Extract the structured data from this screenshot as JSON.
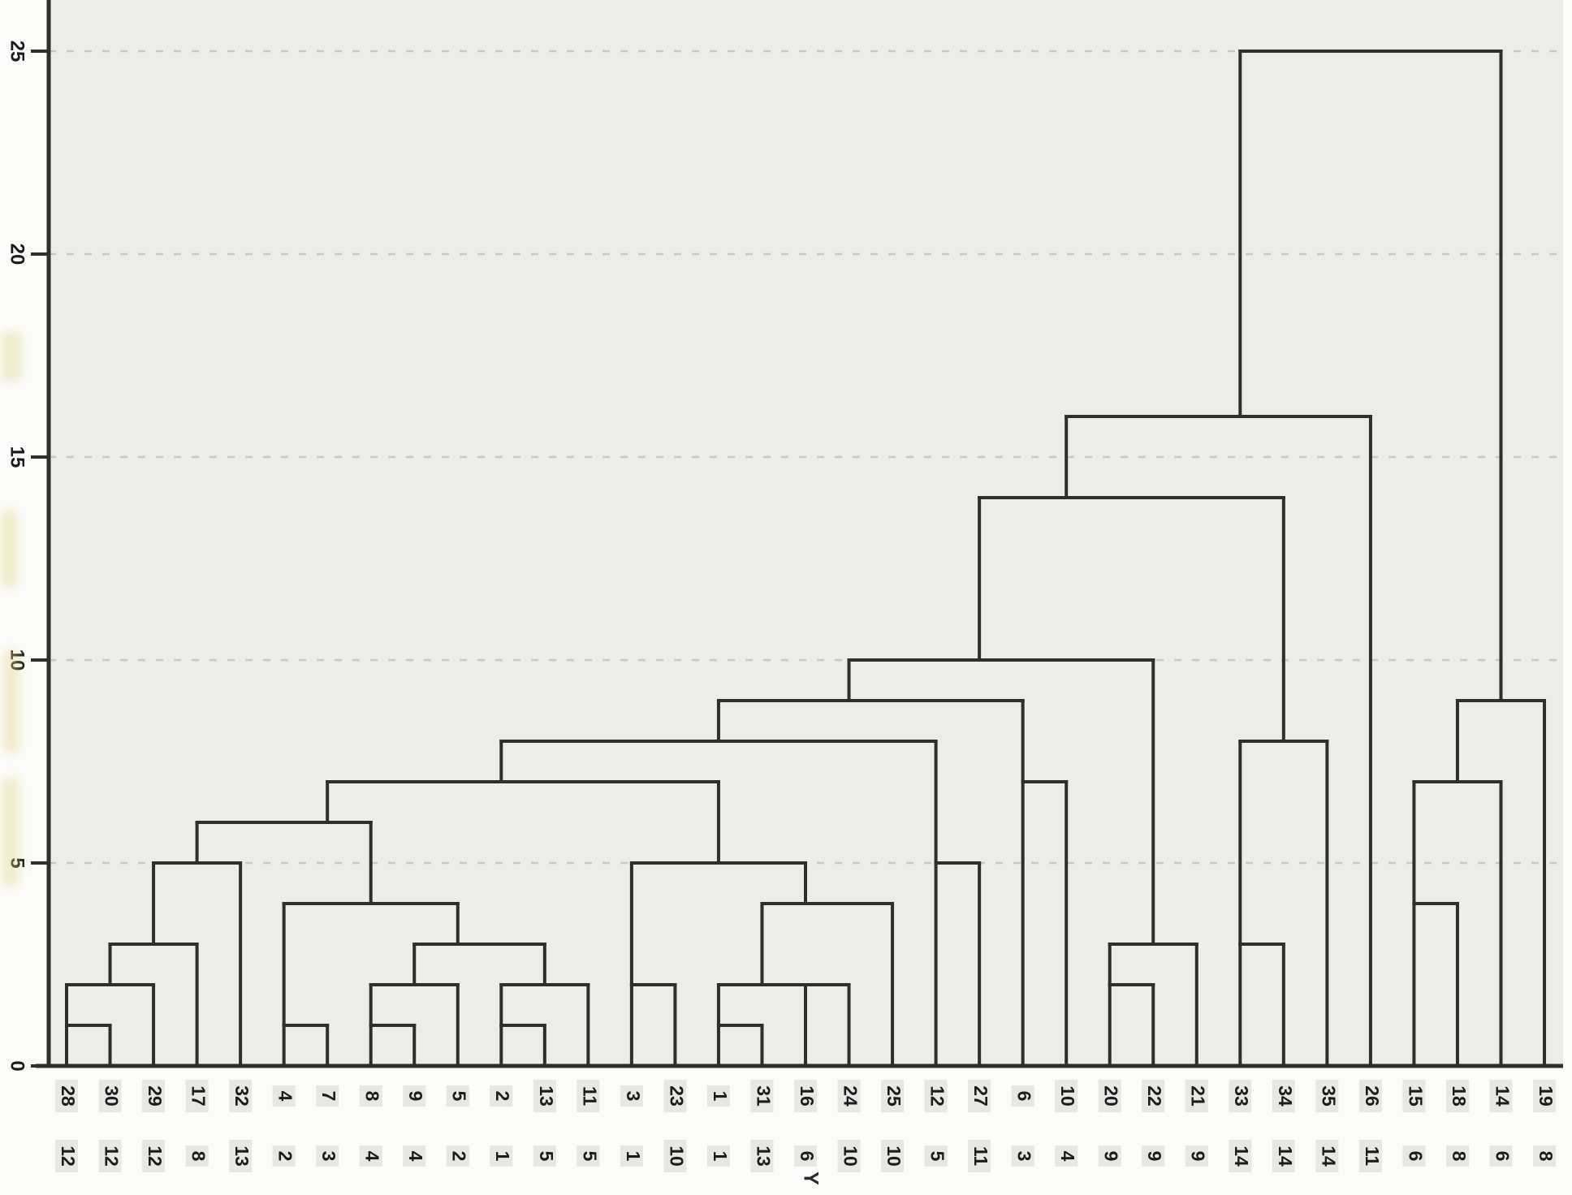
{
  "chart_data": {
    "type": "dendrogram",
    "orientation": "leaves-bottom",
    "xlabel": "Y",
    "ylabel": "",
    "ylim": [
      0,
      26.3
    ],
    "grid": true,
    "y_axis": {
      "ticks": [
        0,
        5,
        10,
        15,
        20,
        25
      ]
    },
    "leaves": [
      {
        "id": "28",
        "group": "12"
      },
      {
        "id": "30",
        "group": "12"
      },
      {
        "id": "29",
        "group": "12"
      },
      {
        "id": "17",
        "group": "8"
      },
      {
        "id": "32",
        "group": "13"
      },
      {
        "id": "4",
        "group": "2"
      },
      {
        "id": "7",
        "group": "3"
      },
      {
        "id": "8",
        "group": "4"
      },
      {
        "id": "9",
        "group": "4"
      },
      {
        "id": "5",
        "group": "2"
      },
      {
        "id": "2",
        "group": "1"
      },
      {
        "id": "13",
        "group": "5"
      },
      {
        "id": "11",
        "group": "5"
      },
      {
        "id": "3",
        "group": "1"
      },
      {
        "id": "23",
        "group": "10"
      },
      {
        "id": "1",
        "group": "1"
      },
      {
        "id": "31",
        "group": "13"
      },
      {
        "id": "16",
        "group": "6"
      },
      {
        "id": "24",
        "group": "10"
      },
      {
        "id": "25",
        "group": "10"
      },
      {
        "id": "12",
        "group": "5"
      },
      {
        "id": "27",
        "group": "11"
      },
      {
        "id": "6",
        "group": "3"
      },
      {
        "id": "10",
        "group": "4"
      },
      {
        "id": "20",
        "group": "9"
      },
      {
        "id": "22",
        "group": "9"
      },
      {
        "id": "21",
        "group": "9"
      },
      {
        "id": "33",
        "group": "14"
      },
      {
        "id": "34",
        "group": "14"
      },
      {
        "id": "35",
        "group": "14"
      },
      {
        "id": "26",
        "group": "11"
      },
      {
        "id": "15",
        "group": "6"
      },
      {
        "id": "18",
        "group": "8"
      },
      {
        "id": "14",
        "group": "6"
      },
      {
        "id": "19",
        "group": "8"
      }
    ],
    "tree": {
      "h": 25,
      "s": null,
      "c": [
        {
          "h": 16,
          "s": "33",
          "c": [
            {
              "h": 14,
              "s": "10",
              "c": [
                {
                  "h": 10,
                  "s": "27",
                  "c": [
                    {
                      "h": 9,
                      "s": "24",
                      "c": [
                        {
                          "h": 8,
                          "s": "1",
                          "c": [
                            {
                              "h": 7,
                              "s": "2",
                              "c": [
                                {
                                  "h": 6,
                                  "s": "7",
                                  "c": [
                                    {
                                      "h": 5,
                                      "s": "17",
                                      "c": [
                                        {
                                          "h": 3,
                                          "s": "29",
                                          "c": [
                                            {
                                              "h": 2,
                                              "s": "30",
                                              "c": [
                                                {
                                                  "h": 1,
                                                  "s": "28",
                                                  "c": [
                                                    "28",
                                                    "30"
                                                  ]
                                                },
                                                "29"
                                              ]
                                            },
                                            "17"
                                          ]
                                        },
                                        "32"
                                      ]
                                    },
                                    {
                                      "h": 4,
                                      "s": "8",
                                      "c": [
                                        {
                                          "h": 1,
                                          "s": "4",
                                          "c": [
                                            "4",
                                            "7"
                                          ]
                                        },
                                        {
                                          "h": 3,
                                          "s": "5",
                                          "c": [
                                            {
                                              "h": 2,
                                              "s": "9",
                                              "c": [
                                                {
                                                  "h": 1,
                                                  "s": "8",
                                                  "c": [
                                                    "8",
                                                    "9"
                                                  ]
                                                },
                                                "5"
                                              ]
                                            },
                                            {
                                              "h": 2,
                                              "s": "13",
                                              "c": [
                                                {
                                                  "h": 1,
                                                  "s": "2",
                                                  "c": [
                                                    "2",
                                                    "13"
                                                  ]
                                                },
                                                "11"
                                              ]
                                            }
                                          ]
                                        }
                                      ]
                                    }
                                  ]
                                },
                                {
                                  "h": 5,
                                  "s": "1",
                                  "c": [
                                    {
                                      "h": 2,
                                      "s": "3",
                                      "c": [
                                        "3",
                                        "23"
                                      ]
                                    },
                                    {
                                      "h": 4,
                                      "s": "16",
                                      "c": [
                                        {
                                          "h": 2,
                                          "s": "31",
                                          "c": [
                                            {
                                              "h": 2,
                                              "s": "31",
                                              "c": [
                                                {
                                                  "h": 1,
                                                  "s": "1",
                                                  "c": [
                                                    "1",
                                                    "31"
                                                  ]
                                                },
                                                "16"
                                              ]
                                            },
                                            "24"
                                          ]
                                        },
                                        "25"
                                      ]
                                    }
                                  ]
                                }
                              ]
                            },
                            {
                              "h": 5,
                              "s": "12",
                              "c": [
                                "12",
                                "27"
                              ]
                            }
                          ]
                        },
                        {
                          "h": 7,
                          "s": "6",
                          "c": [
                            "6",
                            "10"
                          ]
                        }
                      ]
                    },
                    {
                      "h": 3,
                      "s": "22",
                      "c": [
                        {
                          "h": 2,
                          "s": "20",
                          "c": [
                            "20",
                            "22"
                          ]
                        },
                        "21"
                      ]
                    }
                  ]
                },
                {
                  "h": 8,
                  "s": "34",
                  "c": [
                    {
                      "h": 3,
                      "s": "33",
                      "c": [
                        "33",
                        "34"
                      ]
                    },
                    "35"
                  ]
                }
              ]
            },
            "26"
          ]
        },
        {
          "h": 9,
          "s": "14",
          "c": [
            {
              "h": 7,
              "s": "18",
              "c": [
                {
                  "h": 4,
                  "s": "15",
                  "c": [
                    "15",
                    "18"
                  ]
                },
                "14"
              ]
            },
            "19"
          ]
        }
      ]
    }
  },
  "colors": {
    "line": "#2e2e2c",
    "plot_bg": "#ececea",
    "page_bg": "#fbfbf9",
    "grid": "#c9c9c6",
    "label_box": "#e7e7e4",
    "text": "#1c1c1c"
  }
}
